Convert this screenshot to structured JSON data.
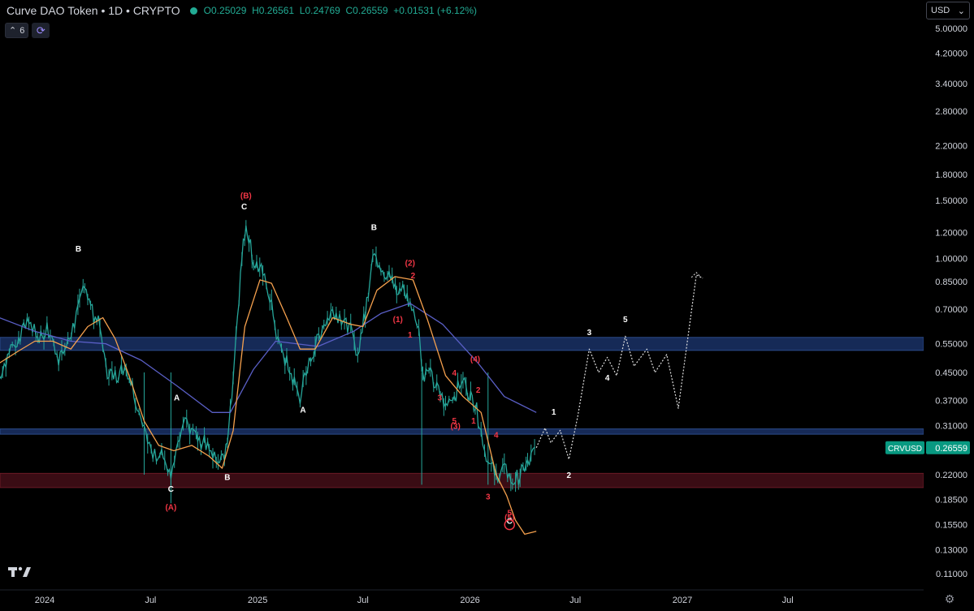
{
  "header": {
    "symbol_title": "Curve DAO Token • 1D • CRYPTO",
    "open": "O0.25029",
    "high": "H0.26561",
    "low": "L0.24769",
    "close": "C0.26559",
    "change": "+0.01531 (+6.12%)"
  },
  "indicators": {
    "collapse_icon": "chevron-up-icon",
    "count": "6",
    "sync_icon": "sync-icon"
  },
  "currency": {
    "label": "USD",
    "icon": "chevron-down-icon"
  },
  "logo": "TV",
  "price_label": {
    "ticker": "CRVUSD",
    "value": "0.26559",
    "color": "#089981"
  },
  "colors": {
    "candle_up": "#26a69a",
    "candle_down": "#26a69a",
    "ma_fast": "#f5a04d",
    "ma_slow": "#5a5fc6",
    "zone_blue": "#162a57",
    "zone_red": "#3a0c14",
    "wave_white": "#ffffff",
    "wave_red": "#f23645",
    "projection": "#e0e0e0"
  },
  "chart_data": {
    "type": "line",
    "title": "",
    "log_scale": true,
    "grid": false,
    "y_ticks": [
      "5.00000",
      "4.20000",
      "3.40000",
      "2.80000",
      "2.20000",
      "1.80000",
      "1.50000",
      "1.20000",
      "1.00000",
      "0.85000",
      "0.70000",
      "0.55000",
      "0.45000",
      "0.37000",
      "0.31000",
      "0.26559",
      "0.22000",
      "0.18500",
      "0.15500",
      "0.13000",
      "0.11000"
    ],
    "x_ticks": [
      "2024",
      "Jul",
      "2025",
      "Jul",
      "2026",
      "Jul",
      "2027",
      "Jul"
    ],
    "ylim": [
      0.105,
      5.3
    ],
    "xlim": [
      "2023-10-15",
      "2027-10-20"
    ],
    "zones": [
      {
        "name": "resistance",
        "from": 0.525,
        "to": 0.575,
        "color": "#162a57"
      },
      {
        "name": "mid",
        "from": 0.292,
        "to": 0.303,
        "color": "#162a57"
      },
      {
        "name": "support",
        "from": 0.201,
        "to": 0.222,
        "color": "#3a0c14"
      }
    ],
    "series": [
      {
        "kind": "price",
        "points": [
          [
            "2023-10-15",
            0.44
          ],
          [
            "2023-11-01",
            0.52
          ],
          [
            "2023-11-20",
            0.58
          ],
          [
            "2023-12-05",
            0.64
          ],
          [
            "2023-12-20",
            0.57
          ],
          [
            "2024-01-05",
            0.61
          ],
          [
            "2024-01-25",
            0.5
          ],
          [
            "2024-02-10",
            0.55
          ],
          [
            "2024-03-01",
            0.72
          ],
          [
            "2024-03-10",
            0.86
          ],
          [
            "2024-03-20",
            0.7
          ],
          [
            "2024-04-05",
            0.62
          ],
          [
            "2024-04-15",
            0.46
          ],
          [
            "2024-05-01",
            0.44
          ],
          [
            "2024-05-20",
            0.47
          ],
          [
            "2024-06-05",
            0.38
          ],
          [
            "2024-06-20",
            0.3
          ],
          [
            "2024-07-05",
            0.25
          ],
          [
            "2024-07-20",
            0.26
          ],
          [
            "2024-08-05",
            0.21
          ],
          [
            "2024-08-20",
            0.28
          ],
          [
            "2024-09-01",
            0.32
          ],
          [
            "2024-09-20",
            0.28
          ],
          [
            "2024-10-10",
            0.27
          ],
          [
            "2024-10-25",
            0.25
          ],
          [
            "2024-11-05",
            0.24
          ],
          [
            "2024-11-15",
            0.34
          ],
          [
            "2024-11-25",
            0.6
          ],
          [
            "2024-12-05",
            1.0
          ],
          [
            "2024-12-12",
            1.3
          ],
          [
            "2024-12-25",
            0.98
          ],
          [
            "2025-01-10",
            0.9
          ],
          [
            "2025-01-25",
            0.74
          ],
          [
            "2025-02-05",
            0.55
          ],
          [
            "2025-02-20",
            0.48
          ],
          [
            "2025-03-05",
            0.42
          ],
          [
            "2025-03-15",
            0.38
          ],
          [
            "2025-03-28",
            0.46
          ],
          [
            "2025-04-10",
            0.55
          ],
          [
            "2025-04-25",
            0.63
          ],
          [
            "2025-05-10",
            0.7
          ],
          [
            "2025-05-25",
            0.66
          ],
          [
            "2025-06-10",
            0.6
          ],
          [
            "2025-06-22",
            0.52
          ],
          [
            "2025-07-05",
            0.68
          ],
          [
            "2025-07-18",
            1.05
          ],
          [
            "2025-08-01",
            0.95
          ],
          [
            "2025-08-15",
            0.88
          ],
          [
            "2025-08-28",
            0.8
          ],
          [
            "2025-09-10",
            0.8
          ],
          [
            "2025-09-20",
            0.72
          ],
          [
            "2025-10-05",
            0.62
          ],
          [
            "2025-10-12",
            0.45
          ],
          [
            "2025-10-25",
            0.44
          ],
          [
            "2025-11-05",
            0.4
          ],
          [
            "2025-11-20",
            0.36
          ],
          [
            "2025-12-05",
            0.38
          ],
          [
            "2025-12-20",
            0.44
          ],
          [
            "2025-12-28",
            0.4
          ],
          [
            "2026-01-10",
            0.36
          ],
          [
            "2026-01-20",
            0.3
          ],
          [
            "2026-02-01",
            0.24
          ],
          [
            "2026-02-15",
            0.22
          ],
          [
            "2026-03-01",
            0.23
          ],
          [
            "2026-03-15",
            0.21
          ],
          [
            "2026-03-28",
            0.22
          ],
          [
            "2026-04-10",
            0.235
          ],
          [
            "2026-04-25",
            0.26559
          ]
        ]
      },
      {
        "kind": "ma_fast",
        "points": [
          [
            "2023-10-15",
            0.48
          ],
          [
            "2023-11-15",
            0.52
          ],
          [
            "2023-12-15",
            0.56
          ],
          [
            "2024-01-15",
            0.56
          ],
          [
            "2024-02-15",
            0.53
          ],
          [
            "2024-03-15",
            0.62
          ],
          [
            "2024-04-10",
            0.66
          ],
          [
            "2024-05-01",
            0.57
          ],
          [
            "2024-05-25",
            0.44
          ],
          [
            "2024-06-20",
            0.32
          ],
          [
            "2024-07-15",
            0.27
          ],
          [
            "2024-08-10",
            0.26
          ],
          [
            "2024-09-10",
            0.27
          ],
          [
            "2024-10-10",
            0.25
          ],
          [
            "2024-11-01",
            0.23
          ],
          [
            "2024-11-20",
            0.3
          ],
          [
            "2024-12-10",
            0.62
          ],
          [
            "2025-01-05",
            0.86
          ],
          [
            "2025-01-25",
            0.84
          ],
          [
            "2025-02-20",
            0.66
          ],
          [
            "2025-03-15",
            0.53
          ],
          [
            "2025-04-10",
            0.53
          ],
          [
            "2025-05-10",
            0.66
          ],
          [
            "2025-06-10",
            0.63
          ],
          [
            "2025-07-01",
            0.62
          ],
          [
            "2025-07-25",
            0.8
          ],
          [
            "2025-08-25",
            0.88
          ],
          [
            "2025-09-25",
            0.86
          ],
          [
            "2025-10-20",
            0.65
          ],
          [
            "2025-11-20",
            0.44
          ],
          [
            "2025-12-20",
            0.38
          ],
          [
            "2026-01-20",
            0.34
          ],
          [
            "2026-02-15",
            0.22
          ],
          [
            "2026-03-05",
            0.19
          ],
          [
            "2026-03-20",
            0.16
          ],
          [
            "2026-04-05",
            0.145
          ],
          [
            "2026-04-25",
            0.148
          ]
        ]
      },
      {
        "kind": "ma_slow",
        "points": [
          [
            "2023-10-15",
            0.66
          ],
          [
            "2023-12-15",
            0.6
          ],
          [
            "2024-02-15",
            0.56
          ],
          [
            "2024-04-15",
            0.55
          ],
          [
            "2024-06-15",
            0.49
          ],
          [
            "2024-08-15",
            0.41
          ],
          [
            "2024-10-15",
            0.34
          ],
          [
            "2024-11-15",
            0.34
          ],
          [
            "2024-12-25",
            0.46
          ],
          [
            "2025-02-01",
            0.56
          ],
          [
            "2025-04-15",
            0.54
          ],
          [
            "2025-06-15",
            0.6
          ],
          [
            "2025-08-01",
            0.68
          ],
          [
            "2025-09-20",
            0.73
          ],
          [
            "2025-11-15",
            0.63
          ],
          [
            "2026-01-15",
            0.48
          ],
          [
            "2026-03-01",
            0.38
          ],
          [
            "2026-04-25",
            0.34
          ]
        ]
      },
      {
        "kind": "projection",
        "points": [
          [
            "2026-04-25",
            0.26559
          ],
          [
            "2026-05-10",
            0.305
          ],
          [
            "2026-05-20",
            0.275
          ],
          [
            "2026-06-05",
            0.3
          ],
          [
            "2026-06-20",
            0.245
          ],
          [
            "2026-07-05",
            0.33
          ],
          [
            "2026-07-25",
            0.53
          ],
          [
            "2026-08-10",
            0.45
          ],
          [
            "2026-08-25",
            0.5
          ],
          [
            "2026-09-10",
            0.44
          ],
          [
            "2026-09-25",
            0.58
          ],
          [
            "2026-10-10",
            0.47
          ],
          [
            "2026-11-01",
            0.53
          ],
          [
            "2026-11-15",
            0.45
          ],
          [
            "2026-12-05",
            0.51
          ],
          [
            "2026-12-25",
            0.35
          ],
          [
            "2027-01-25",
            0.89
          ],
          [
            "2027-02-05",
            0.87
          ]
        ]
      }
    ],
    "wave_labels": [
      {
        "text": "B",
        "x": "2024-02-28",
        "y": 1.05,
        "color": "white"
      },
      {
        "text": "A",
        "x": "2024-08-15",
        "y": 0.37,
        "color": "white"
      },
      {
        "text": "C",
        "x": "2024-08-05",
        "y": 0.195,
        "color": "white"
      },
      {
        "text": "(A)",
        "x": "2024-08-05",
        "y": 0.172,
        "color": "red"
      },
      {
        "text": "B",
        "x": "2024-11-10",
        "y": 0.212,
        "color": "white"
      },
      {
        "text": "(B)",
        "x": "2024-12-12",
        "y": 1.52,
        "color": "red"
      },
      {
        "text": "C",
        "x": "2024-12-09",
        "y": 1.41,
        "color": "white"
      },
      {
        "text": "A",
        "x": "2025-03-20",
        "y": 0.34,
        "color": "white"
      },
      {
        "text": "B",
        "x": "2025-07-20",
        "y": 1.22,
        "color": "white"
      },
      {
        "text": "(2)",
        "x": "2025-09-20",
        "y": 0.95,
        "color": "red"
      },
      {
        "text": "2",
        "x": "2025-09-25",
        "y": 0.87,
        "color": "red"
      },
      {
        "text": "(1)",
        "x": "2025-08-30",
        "y": 0.64,
        "color": "red"
      },
      {
        "text": "1",
        "x": "2025-09-20",
        "y": 0.575,
        "color": "red"
      },
      {
        "text": "(4)",
        "x": "2026-01-10",
        "y": 0.485,
        "color": "red"
      },
      {
        "text": "4",
        "x": "2025-12-05",
        "y": 0.44,
        "color": "red"
      },
      {
        "text": "3",
        "x": "2025-11-10",
        "y": 0.37,
        "color": "red"
      },
      {
        "text": "2",
        "x": "2026-01-15",
        "y": 0.39,
        "color": "red"
      },
      {
        "text": "1",
        "x": "2026-01-07",
        "y": 0.315,
        "color": "red"
      },
      {
        "text": "5",
        "x": "2025-12-05",
        "y": 0.315,
        "color": "red"
      },
      {
        "text": "(3)",
        "x": "2025-12-07",
        "y": 0.303,
        "color": "red"
      },
      {
        "text": "4",
        "x": "2026-02-15",
        "y": 0.285,
        "color": "red"
      },
      {
        "text": "3",
        "x": "2026-02-01",
        "y": 0.185,
        "color": "red"
      },
      {
        "text": "5",
        "x": "2026-03-10",
        "y": 0.165,
        "color": "red"
      },
      {
        "text": "(5)",
        "x": "2026-03-10",
        "y": 0.16,
        "color": "red"
      },
      {
        "text": "C",
        "x": "2026-03-10",
        "y": 0.156,
        "color": "white"
      },
      {
        "text": "1",
        "x": "2026-05-25",
        "y": 0.335,
        "color": "white"
      },
      {
        "text": "2",
        "x": "2026-06-20",
        "y": 0.215,
        "color": "white"
      },
      {
        "text": "3",
        "x": "2026-07-25",
        "y": 0.585,
        "color": "white"
      },
      {
        "text": "4",
        "x": "2026-08-25",
        "y": 0.425,
        "color": "white"
      },
      {
        "text": "5",
        "x": "2026-09-25",
        "y": 0.64,
        "color": "white"
      }
    ],
    "circle_marker": {
      "x": "2026-03-10",
      "y": 0.155
    }
  }
}
